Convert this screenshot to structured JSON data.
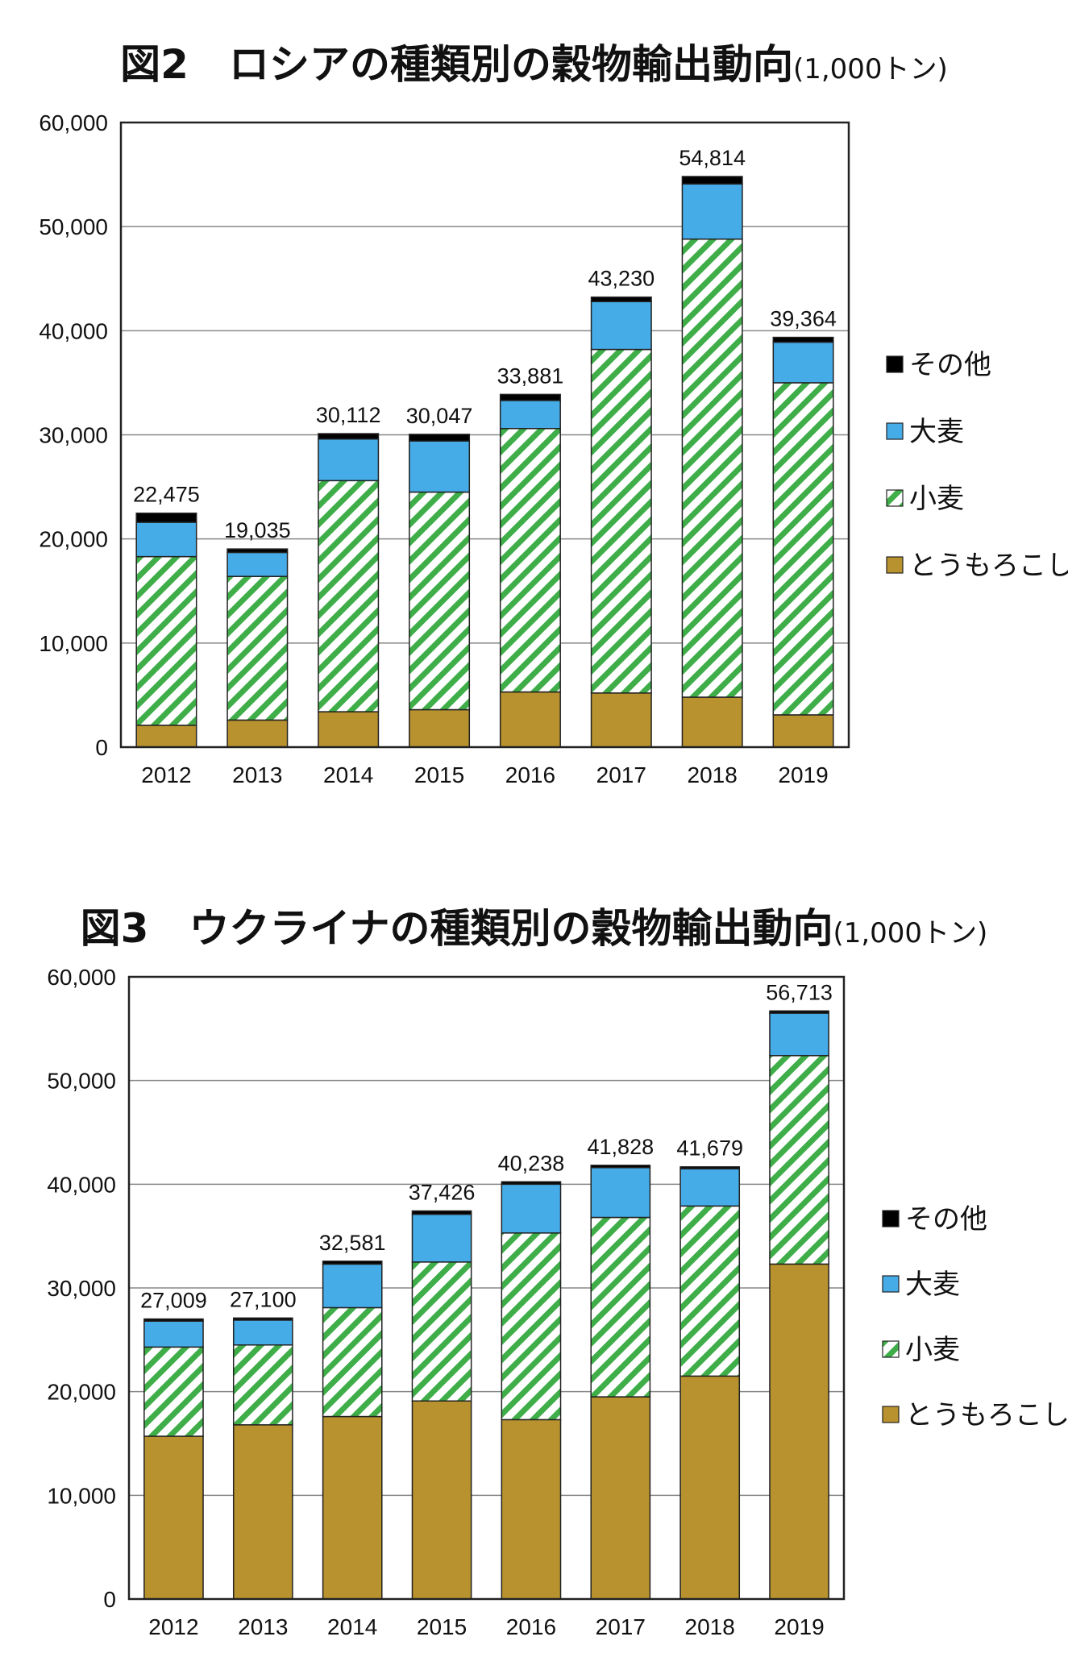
{
  "chart_data": [
    {
      "type": "bar",
      "stacked": true,
      "title": "図2　ロシアの種類別の穀物輸出動向",
      "unit_label": "(1,000トン)",
      "xlabel": "",
      "ylabel": "",
      "ylim": [
        0,
        60000
      ],
      "yticks": [
        "0",
        "10,000",
        "20,000",
        "30,000",
        "40,000",
        "50,000",
        "60,000"
      ],
      "grid": true,
      "legend_position": "right",
      "categories": [
        "2012",
        "2013",
        "2014",
        "2015",
        "2016",
        "2017",
        "2018",
        "2019"
      ],
      "series": [
        {
          "name": "とうもろこし",
          "color": "#b8922e",
          "pattern": "solid",
          "values": [
            2100,
            2600,
            3400,
            3600,
            5300,
            5200,
            4800,
            3100
          ]
        },
        {
          "name": "小麦",
          "color": "#3fae49",
          "pattern": "diagonal-hatch",
          "values": [
            16200,
            13800,
            22200,
            20900,
            25300,
            33000,
            44000,
            31900
          ]
        },
        {
          "name": "大麦",
          "color": "#45ace8",
          "pattern": "solid",
          "values": [
            3300,
            2300,
            4000,
            4900,
            2700,
            4600,
            5300,
            3900
          ]
        },
        {
          "name": "その他",
          "color": "#000000",
          "pattern": "solid",
          "values": [
            875,
            335,
            512,
            647,
            581,
            430,
            714,
            464
          ]
        }
      ],
      "totals": [
        "22,475",
        "19,035",
        "30,112",
        "30,047",
        "33,881",
        "43,230",
        "54,814",
        "39,364"
      ]
    },
    {
      "type": "bar",
      "stacked": true,
      "title": "図3　ウクライナの種類別の穀物輸出動向",
      "unit_label": "(1,000トン)",
      "xlabel": "",
      "ylabel": "",
      "ylim": [
        0,
        60000
      ],
      "yticks": [
        "0",
        "10,000",
        "20,000",
        "30,000",
        "40,000",
        "50,000",
        "60,000"
      ],
      "grid": true,
      "legend_position": "right",
      "categories": [
        "2012",
        "2013",
        "2014",
        "2015",
        "2016",
        "2017",
        "2018",
        "2019"
      ],
      "series": [
        {
          "name": "とうもろこし",
          "color": "#b8922e",
          "pattern": "solid",
          "values": [
            15700,
            16800,
            17600,
            19100,
            17300,
            19500,
            21500,
            32300
          ]
        },
        {
          "name": "小麦",
          "color": "#3fae49",
          "pattern": "diagonal-hatch",
          "values": [
            8600,
            7700,
            10500,
            13400,
            18000,
            17300,
            16400,
            20100
          ]
        },
        {
          "name": "大麦",
          "color": "#45ace8",
          "pattern": "solid",
          "values": [
            2500,
            2400,
            4200,
            4600,
            4700,
            4800,
            3600,
            4100
          ]
        },
        {
          "name": "その他",
          "color": "#000000",
          "pattern": "solid",
          "values": [
            209,
            200,
            281,
            326,
            238,
            228,
            179,
            213
          ]
        }
      ],
      "totals": [
        "27,009",
        "27,100",
        "32,581",
        "37,426",
        "40,238",
        "41,828",
        "41,679",
        "56,713"
      ]
    }
  ]
}
